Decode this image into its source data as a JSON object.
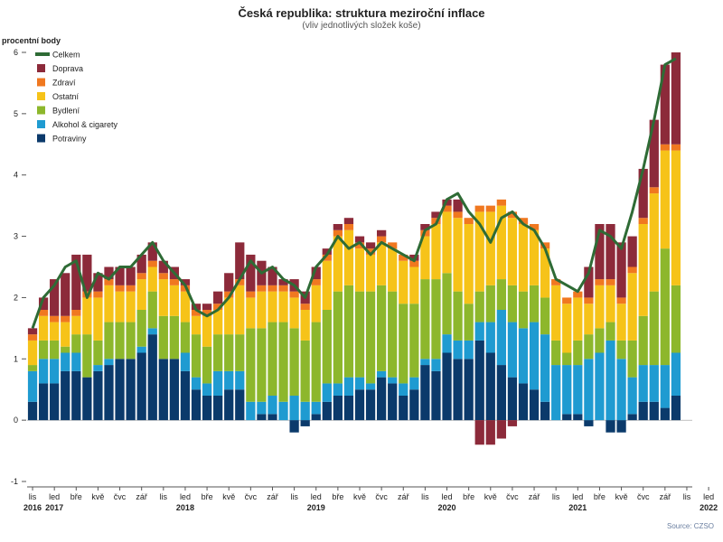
{
  "chart_data": {
    "type": "bar",
    "stacked": true,
    "title": "Česká republika: struktura meziroční inflace",
    "subtitle": "(vliv jednotlivých složek koše)",
    "ylabel": "procentní body",
    "source": "Source: CZSO",
    "ylim": [
      -1,
      6
    ],
    "yticks": [
      -1,
      0,
      1,
      2,
      3,
      4,
      5,
      6
    ],
    "x_start": "2016-11",
    "x_end": "2021-11",
    "x_tick_labels": [
      "lis",
      "led",
      "bře",
      "kvě",
      "čvc",
      "zář",
      "lis",
      "led",
      "bře",
      "kvě",
      "čvc",
      "zář",
      "lis",
      "led",
      "bře",
      "kvě",
      "čvc",
      "zář",
      "lis",
      "led",
      "bře",
      "kvě",
      "čvc",
      "zář",
      "lis",
      "led",
      "bře",
      "kvě",
      "čvc",
      "zář",
      "lis",
      "led"
    ],
    "year_labels": [
      "2016",
      "2017",
      "2018",
      "2019",
      "2020",
      "2021",
      "2022"
    ],
    "legend_position": "top-left",
    "series": [
      {
        "name": "Potraviny",
        "color": "#0b3a6b",
        "values": [
          0.3,
          0.6,
          0.6,
          0.8,
          0.8,
          0.7,
          0.8,
          0.9,
          1.0,
          1.0,
          1.1,
          1.4,
          1.0,
          1.0,
          0.8,
          0.5,
          0.4,
          0.4,
          0.5,
          0.5,
          0.0,
          0.1,
          0.1,
          0.0,
          -0.2,
          -0.1,
          0.1,
          0.3,
          0.4,
          0.4,
          0.5,
          0.5,
          0.7,
          0.6,
          0.4,
          0.5,
          0.9,
          0.8,
          1.1,
          1.0,
          1.0,
          1.3,
          1.1,
          0.9,
          0.7,
          0.6,
          0.5,
          0.3,
          0.0,
          0.1,
          0.1,
          -0.1,
          0.0,
          -0.2,
          -0.2,
          0.1,
          0.3,
          0.3,
          0.2,
          0.4
        ]
      },
      {
        "name": "Alkohol & cigarety",
        "color": "#1f9bd1",
        "values": [
          0.5,
          0.4,
          0.4,
          0.3,
          0.3,
          0.0,
          0.1,
          0.1,
          0.0,
          0.0,
          0.1,
          0.1,
          0.0,
          0.0,
          0.3,
          0.2,
          0.2,
          0.4,
          0.3,
          0.3,
          0.3,
          0.2,
          0.3,
          0.3,
          0.4,
          0.3,
          0.2,
          0.3,
          0.2,
          0.3,
          0.2,
          0.1,
          0.1,
          0.1,
          0.2,
          0.2,
          0.1,
          0.2,
          0.3,
          0.3,
          0.3,
          0.3,
          0.5,
          0.9,
          0.9,
          0.9,
          1.1,
          1.1,
          0.9,
          0.8,
          0.8,
          1.0,
          1.1,
          1.3,
          1.0,
          0.6,
          0.6,
          0.6,
          0.7,
          0.7
        ]
      },
      {
        "name": "Bydlení",
        "color": "#8db72c",
        "values": [
          0.1,
          0.3,
          0.3,
          0.1,
          0.3,
          0.7,
          0.4,
          0.6,
          0.6,
          0.6,
          0.6,
          0.6,
          0.7,
          0.7,
          0.5,
          0.7,
          0.6,
          0.6,
          0.6,
          0.6,
          1.2,
          1.2,
          1.2,
          1.3,
          1.1,
          1.0,
          1.3,
          1.2,
          1.5,
          1.5,
          1.4,
          1.5,
          1.4,
          1.4,
          1.3,
          1.2,
          1.3,
          1.3,
          1.0,
          0.8,
          0.6,
          0.5,
          0.6,
          0.5,
          0.6,
          0.6,
          0.6,
          0.6,
          0.4,
          0.2,
          0.4,
          0.4,
          0.4,
          0.3,
          0.3,
          0.6,
          0.8,
          1.2,
          1.9,
          1.1
        ]
      },
      {
        "name": "Ostatní",
        "color": "#f6c319",
        "values": [
          0.4,
          0.4,
          0.3,
          0.4,
          0.3,
          0.6,
          0.7,
          0.6,
          0.5,
          0.5,
          0.5,
          0.4,
          0.6,
          0.5,
          0.5,
          0.3,
          0.5,
          0.4,
          0.6,
          0.8,
          0.5,
          0.6,
          0.5,
          0.5,
          0.5,
          0.5,
          0.6,
          0.8,
          0.9,
          0.9,
          0.7,
          0.6,
          0.7,
          0.7,
          0.7,
          0.6,
          0.7,
          0.9,
          1.0,
          1.2,
          1.3,
          1.3,
          1.2,
          1.2,
          1.1,
          1.1,
          0.9,
          0.8,
          0.9,
          0.8,
          0.7,
          0.5,
          0.7,
          0.6,
          0.6,
          1.1,
          1.5,
          1.6,
          1.6,
          2.2
        ]
      },
      {
        "name": "Zdraví",
        "color": "#f07820",
        "values": [
          0.1,
          0.1,
          0.1,
          0.1,
          0.1,
          0.1,
          0.1,
          0.1,
          0.1,
          0.1,
          0.1,
          0.1,
          0.1,
          0.1,
          0.1,
          0.1,
          0.1,
          0.1,
          0.1,
          0.1,
          0.1,
          0.1,
          0.1,
          0.1,
          0.1,
          0.1,
          0.1,
          0.1,
          0.1,
          0.1,
          0.1,
          0.1,
          0.1,
          0.1,
          0.1,
          0.1,
          0.1,
          0.1,
          0.1,
          0.1,
          0.1,
          0.1,
          0.1,
          0.1,
          0.1,
          0.1,
          0.1,
          0.1,
          0.1,
          0.1,
          0.1,
          0.1,
          0.1,
          0.1,
          0.1,
          0.1,
          0.1,
          0.1,
          0.1,
          0.1
        ]
      },
      {
        "name": "Doprava",
        "color": "#8c2a3a",
        "values": [
          0.1,
          0.2,
          0.6,
          0.7,
          0.9,
          0.6,
          0.3,
          0.2,
          0.3,
          0.3,
          0.3,
          0.3,
          0.2,
          0.2,
          0.1,
          0.1,
          0.1,
          0.2,
          0.3,
          0.6,
          0.6,
          0.4,
          0.3,
          0.1,
          0.2,
          0.2,
          0.2,
          0.1,
          0.1,
          0.1,
          0.1,
          0.1,
          0.1,
          0.0,
          0.0,
          0.1,
          0.1,
          0.1,
          0.1,
          0.2,
          0.0,
          -0.4,
          -0.4,
          -0.3,
          -0.1,
          0.0,
          0.0,
          0.0,
          0.0,
          0.0,
          0.0,
          0.5,
          0.9,
          0.9,
          0.9,
          0.5,
          0.8,
          1.1,
          1.3,
          1.5
        ]
      }
    ],
    "total": {
      "name": "Celkem",
      "color": "#2e6b35",
      "values": [
        1.5,
        2.0,
        2.2,
        2.5,
        2.6,
        2.0,
        2.4,
        2.3,
        2.5,
        2.5,
        2.7,
        2.9,
        2.6,
        2.4,
        2.2,
        1.8,
        1.7,
        1.8,
        2.0,
        2.3,
        2.6,
        2.4,
        2.5,
        2.3,
        2.2,
        2.0,
        2.5,
        2.7,
        3.0,
        2.8,
        2.9,
        2.7,
        2.9,
        2.8,
        2.7,
        2.6,
        3.1,
        3.2,
        3.6,
        3.7,
        3.4,
        3.2,
        2.9,
        3.3,
        3.4,
        3.2,
        3.1,
        2.8,
        2.3,
        2.2,
        2.1,
        2.4,
        3.1,
        3.0,
        2.8,
        3.4,
        4.1,
        4.9,
        5.8,
        5.9
      ]
    }
  }
}
